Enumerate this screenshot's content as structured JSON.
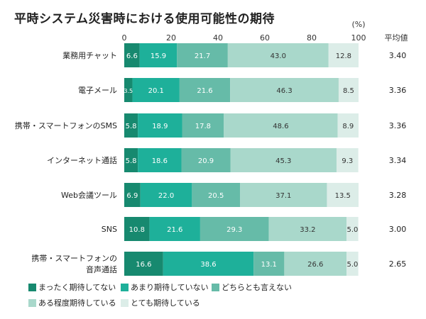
{
  "chart_data": {
    "type": "bar",
    "orientation": "horizontal",
    "stacked": true,
    "title": "平時システム災害時における使用可能性の期待",
    "unit_label": "(%)",
    "xlim": [
      0,
      100
    ],
    "xticks": [
      "0",
      "20",
      "40",
      "60",
      "80",
      "100"
    ],
    "grid": false,
    "legend_position": "bottom",
    "categories": [
      "業務用チャット",
      "電子メール",
      "携帯・スマートフォンのSMS",
      "インターネット通話",
      "Web会議ツール",
      "SNS",
      "携帯・スマートフォンの音声通話"
    ],
    "category_lines": [
      [
        "業務用チャット"
      ],
      [
        "電子メール"
      ],
      [
        "携帯・スマートフォンのSMS"
      ],
      [
        "インターネット通話"
      ],
      [
        "Web会議ツール"
      ],
      [
        "SNS"
      ],
      [
        "携帯・スマートフォンの",
        "音声通話"
      ]
    ],
    "series": [
      {
        "name": "まったく期待してない",
        "color": "#17896f",
        "values": [
          6.6,
          3.5,
          5.8,
          5.8,
          6.9,
          10.8,
          16.6
        ]
      },
      {
        "name": "あまり期待していない",
        "color": "#1eb09a",
        "values": [
          15.9,
          20.1,
          18.9,
          18.6,
          22.0,
          21.6,
          38.6
        ]
      },
      {
        "name": "どちらとも言えない",
        "color": "#66bba8",
        "values": [
          21.7,
          21.6,
          17.8,
          20.9,
          20.5,
          29.3,
          13.1
        ]
      },
      {
        "name": "ある程度期待している",
        "color": "#a9d8cb",
        "values": [
          43.0,
          46.3,
          48.6,
          45.3,
          37.1,
          33.2,
          26.6
        ]
      },
      {
        "name": "とても期待している",
        "color": "#dcede8",
        "values": [
          12.8,
          8.5,
          8.9,
          9.3,
          13.5,
          5.0,
          5.0
        ]
      }
    ],
    "average_header": "平均値",
    "averages": [
      "3.40",
      "3.36",
      "3.36",
      "3.34",
      "3.28",
      "3.00",
      "2.65"
    ]
  }
}
